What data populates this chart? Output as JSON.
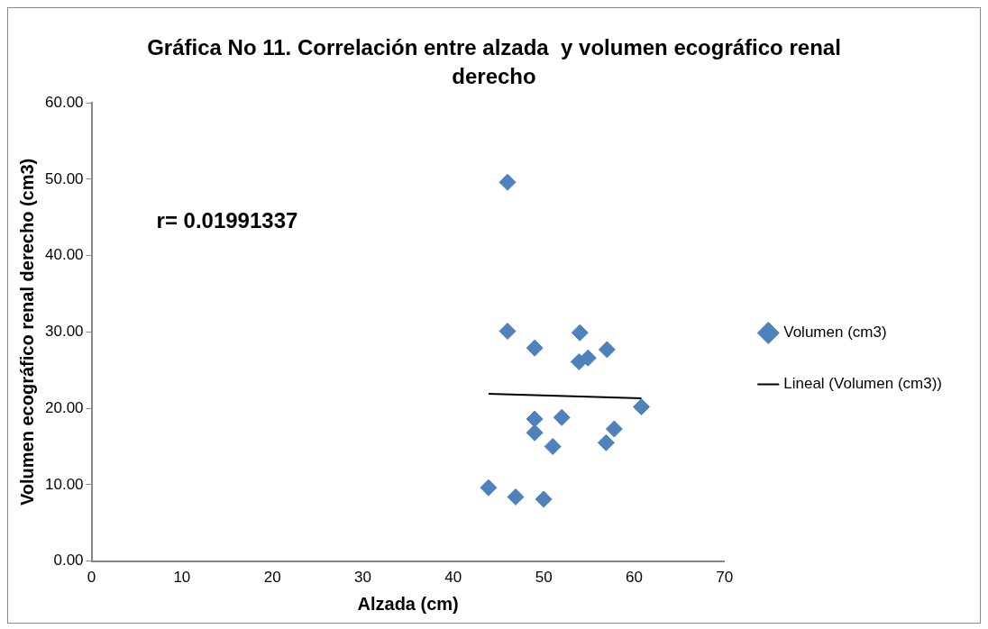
{
  "chart_data": {
    "type": "scatter",
    "title": "Gráfica No 11. Correlación entre alzada  y volumen ecográfico renal derecho",
    "xlabel": "Alzada (cm)",
    "ylabel": "Volumen ecográfico renal derecho (cm3)",
    "xlim": [
      0,
      70
    ],
    "xticks": [
      0,
      10,
      20,
      30,
      40,
      50,
      60,
      70
    ],
    "ylim": [
      0,
      60
    ],
    "yticks": [
      {
        "value": 0,
        "label": "0.00"
      },
      {
        "value": 10,
        "label": "10.00"
      },
      {
        "value": 20,
        "label": "20.00"
      },
      {
        "value": 30,
        "label": "30.00"
      },
      {
        "value": 40,
        "label": "40.00"
      },
      {
        "value": 50,
        "label": "50.00"
      },
      {
        "value": 60,
        "label": "60.00"
      }
    ],
    "grid": false,
    "legend": "right",
    "marker": "diamond",
    "annotations": [
      "r= 0.01991337"
    ],
    "series": [
      {
        "name": "Volumen (cm3)",
        "color": "#4f81bd",
        "x": [
          46.0,
          46.0,
          49.0,
          54.0,
          53.9,
          54.9,
          57.0,
          60.8,
          49.0,
          52.0,
          49.0,
          51.0,
          57.8,
          56.9,
          43.9,
          46.9,
          50.0
        ],
        "values": [
          49.6,
          30.1,
          27.9,
          29.9,
          26.1,
          26.6,
          27.7,
          20.2,
          18.6,
          18.8,
          16.8,
          15.0,
          17.3,
          15.5,
          9.6,
          8.4,
          8.1
        ]
      },
      {
        "name": "Lineal (Volumen (cm3))",
        "type": "line",
        "color": "#000000",
        "marker": "none",
        "x": [
          43.9,
          60.8
        ],
        "values": [
          21.9,
          21.3
        ]
      }
    ]
  }
}
